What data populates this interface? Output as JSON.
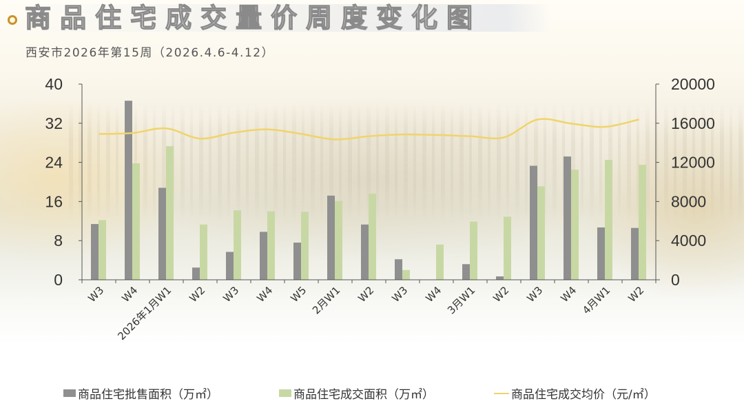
{
  "header": {
    "title": "商品住宅成交量价周度变化图",
    "subtitle": "西安市2026年第15周（2026.4.6-4.12）",
    "bullet_color": "#c8922a"
  },
  "colors": {
    "supply_bar": "#8f8f8f",
    "deal_bar": "#c8d8a4",
    "price_line": "#f0d46a",
    "axis": "#555555"
  },
  "legend": {
    "items": [
      {
        "label": "商品住宅批售面积（万㎡）",
        "type": "bar",
        "color": "#8f8f8f"
      },
      {
        "label": "商品住宅成交面积（万㎡）",
        "type": "bar",
        "color": "#c8d8a4"
      },
      {
        "label": "商品住宅成交均价（元/㎡）",
        "type": "line",
        "color": "#f0d46a"
      }
    ]
  },
  "chart_data": {
    "type": "bar+line",
    "title": "商品住宅成交量价周度变化图",
    "subtitle": "西安市2026年第15周（2026.4.6-4.12）",
    "categories": [
      "W3",
      "W4",
      "2026年1月W1",
      "W2",
      "W3",
      "W4",
      "W5",
      "2月W1",
      "W2",
      "W3",
      "W4",
      "3月W1",
      "W2",
      "W3",
      "W4",
      "4月W1",
      "W2"
    ],
    "series": [
      {
        "name": "商品住宅批售面积（万㎡）",
        "type": "bar",
        "axis": "left",
        "values": [
          11.4,
          36.6,
          18.8,
          2.5,
          5.7,
          9.8,
          7.6,
          17.2,
          11.3,
          4.2,
          0,
          3.2,
          0.7,
          23.3,
          25.2,
          10.7,
          10.6
        ]
      },
      {
        "name": "商品住宅成交面积（万㎡）",
        "type": "bar",
        "axis": "left",
        "values": [
          12.2,
          23.8,
          27.3,
          11.3,
          14.2,
          14.0,
          13.9,
          16.1,
          17.6,
          2.0,
          7.2,
          11.9,
          12.9,
          19.1,
          22.5,
          24.5,
          23.5
        ]
      },
      {
        "name": "商品住宅成交均价（元/㎡）",
        "type": "line",
        "axis": "right",
        "values": [
          14900,
          15000,
          15470,
          14430,
          15040,
          15370,
          14900,
          14340,
          14670,
          14850,
          14800,
          14670,
          14550,
          16380,
          15960,
          15630,
          16380
        ]
      }
    ],
    "y_left": {
      "ylim": [
        0,
        40
      ],
      "ticks": [
        0,
        8,
        16,
        24,
        32,
        40
      ]
    },
    "y_right": {
      "ylim": [
        0,
        20000
      ],
      "ticks": [
        0,
        4000,
        8000,
        12000,
        16000,
        20000
      ]
    },
    "xlabel": "",
    "ylabel": "",
    "grid": false,
    "legend_position": "bottom"
  }
}
